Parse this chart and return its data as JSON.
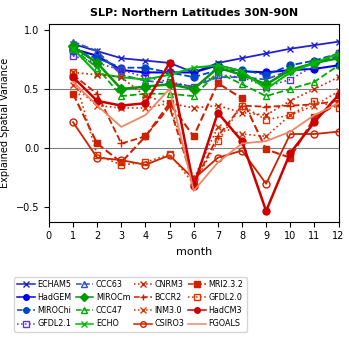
{
  "title": "SLP: Northern Latitudes 30N-90N",
  "xlabel": "month",
  "ylabel": "Explained Spatial Variance",
  "xlim": [
    0,
    12
  ],
  "ylim": [
    -0.62,
    1.05
  ],
  "yticks": [
    -0.5,
    0,
    0.5,
    1
  ],
  "xticks": [
    0,
    1,
    2,
    3,
    4,
    5,
    6,
    7,
    8,
    9,
    10,
    11,
    12
  ],
  "hlines": [
    0,
    0.5
  ],
  "series": [
    {
      "name": "ECHAM5",
      "color": "#2222cc",
      "linestyle": "-",
      "marker": "x",
      "markersize": 5,
      "linewidth": 1.3,
      "markerfacecolor": "#2222cc",
      "data": [
        null,
        0.88,
        0.82,
        0.76,
        0.74,
        0.72,
        0.64,
        0.72,
        0.76,
        0.8,
        0.84,
        0.87,
        0.9
      ]
    },
    {
      "name": "HadGEM",
      "color": "#0000ee",
      "linestyle": "-",
      "marker": "o",
      "markersize": 5,
      "linewidth": 1.5,
      "markerfacecolor": "#0000ee",
      "data": [
        null,
        0.84,
        0.78,
        0.66,
        0.64,
        0.64,
        0.64,
        0.7,
        0.65,
        0.64,
        0.66,
        0.67,
        0.7
      ]
    },
    {
      "name": "MIROChi",
      "color": "#0044cc",
      "linestyle": "--",
      "marker": "o",
      "markersize": 5,
      "linewidth": 1.3,
      "markerfacecolor": "#0044cc",
      "data": [
        null,
        0.82,
        0.76,
        0.68,
        0.68,
        0.64,
        0.6,
        0.66,
        0.66,
        0.62,
        0.7,
        0.74,
        0.8
      ]
    },
    {
      "name": "GFDL2.1",
      "color": "#6633cc",
      "linestyle": ":",
      "marker": "s",
      "markersize": 5,
      "linewidth": 1.2,
      "markerfacecolor": "none",
      "data": [
        null,
        0.78,
        0.72,
        0.66,
        0.6,
        0.56,
        0.52,
        0.62,
        0.6,
        0.52,
        0.58,
        0.7,
        0.8
      ]
    },
    {
      "name": "CCC63",
      "color": "#3355bb",
      "linestyle": "--",
      "marker": "^",
      "markersize": 5,
      "linewidth": 1.3,
      "markerfacecolor": "none",
      "data": [
        null,
        0.9,
        0.82,
        0.62,
        0.57,
        0.55,
        0.52,
        0.6,
        0.6,
        0.58,
        0.66,
        0.72,
        0.78
      ]
    },
    {
      "name": "MIROCm",
      "color": "#009900",
      "linestyle": "-",
      "marker": "D",
      "markersize": 5,
      "linewidth": 1.8,
      "markerfacecolor": "#009900",
      "data": [
        null,
        0.86,
        0.72,
        0.5,
        0.52,
        0.54,
        0.5,
        0.68,
        0.62,
        0.54,
        0.66,
        0.72,
        0.76
      ]
    },
    {
      "name": "CCC47",
      "color": "#00aa00",
      "linestyle": "--",
      "marker": "^",
      "markersize": 5,
      "linewidth": 1.3,
      "markerfacecolor": "none",
      "data": [
        null,
        0.84,
        0.68,
        0.44,
        0.46,
        0.46,
        0.44,
        0.64,
        0.54,
        0.44,
        0.5,
        0.56,
        0.7
      ]
    },
    {
      "name": "ECHO",
      "color": "#00bb00",
      "linestyle": "-",
      "marker": "x",
      "markersize": 5,
      "linewidth": 1.5,
      "markerfacecolor": "#00bb00",
      "data": [
        null,
        0.84,
        0.63,
        0.6,
        0.58,
        0.62,
        0.68,
        0.7,
        0.65,
        0.5,
        0.64,
        0.72,
        0.8
      ]
    },
    {
      "name": "CNRM3",
      "color": "#cc2200",
      "linestyle": ":",
      "marker": "x",
      "markersize": 5,
      "linewidth": 1.2,
      "markerfacecolor": "#cc2200",
      "data": [
        null,
        0.64,
        0.62,
        0.6,
        0.44,
        0.38,
        0.34,
        0.36,
        0.3,
        0.28,
        0.4,
        0.5,
        0.6
      ]
    },
    {
      "name": "BCCR2",
      "color": "#cc2200",
      "linestyle": "--",
      "marker": "+",
      "markersize": 6,
      "linewidth": 1.3,
      "markerfacecolor": "#cc2200",
      "data": [
        null,
        0.62,
        0.46,
        0.04,
        0.1,
        0.35,
        -0.3,
        0.1,
        0.36,
        0.35,
        0.36,
        0.37,
        0.4
      ]
    },
    {
      "name": "INM3.0",
      "color": "#dd3300",
      "linestyle": ":",
      "marker": "x",
      "markersize": 5,
      "linewidth": 1.2,
      "markerfacecolor": "#dd3300",
      "data": [
        null,
        0.53,
        0.36,
        0.34,
        0.34,
        0.38,
        -0.26,
        0.18,
        0.12,
        0.1,
        0.28,
        0.36,
        0.48
      ]
    },
    {
      "name": "CSIRO3",
      "color": "#cc2200",
      "linestyle": "-",
      "marker": "o",
      "markersize": 5,
      "linewidth": 1.3,
      "markerfacecolor": "none",
      "data": [
        null,
        0.22,
        -0.08,
        -0.1,
        -0.14,
        -0.06,
        -0.26,
        -0.08,
        -0.02,
        -0.3,
        0.12,
        0.12,
        0.14
      ]
    },
    {
      "name": "MRI2.3.2",
      "color": "#cc2200",
      "linestyle": "--",
      "marker": "s",
      "markersize": 5,
      "linewidth": 1.5,
      "markerfacecolor": "#cc2200",
      "data": [
        null,
        0.46,
        0.04,
        -0.12,
        0.1,
        0.38,
        0.1,
        0.55,
        0.42,
        -0.01,
        -0.08,
        0.26,
        0.38
      ]
    },
    {
      "name": "GFDL2.0",
      "color": "#dd3300",
      "linestyle": ":",
      "marker": "s",
      "markersize": 5,
      "linewidth": 1.2,
      "markerfacecolor": "none",
      "data": [
        null,
        0.64,
        -0.06,
        -0.14,
        -0.12,
        -0.05,
        -0.3,
        0.06,
        0.36,
        0.24,
        0.28,
        0.4,
        0.34
      ]
    },
    {
      "name": "HadCM3",
      "color": "#cc0000",
      "linestyle": "-",
      "marker": "o",
      "markersize": 5,
      "linewidth": 1.8,
      "markerfacecolor": "#cc0000",
      "data": [
        null,
        0.6,
        0.4,
        0.36,
        0.38,
        0.72,
        -0.32,
        0.3,
        0.06,
        -0.53,
        -0.04,
        0.22,
        0.45
      ]
    },
    {
      "name": "FGOALS",
      "color": "#ee8866",
      "linestyle": "-",
      "marker": null,
      "markersize": 0,
      "linewidth": 1.3,
      "markerfacecolor": null,
      "data": [
        null,
        0.56,
        0.36,
        0.18,
        0.28,
        0.5,
        -0.36,
        -0.12,
        0.04,
        0.06,
        0.14,
        0.28,
        0.38
      ]
    }
  ],
  "legend_order": [
    [
      "ECHAM5",
      "HadGEM",
      "MIROChi",
      "GFDL2.1"
    ],
    [
      "CCC63",
      "MIROCm",
      "CCC47",
      "ECHO"
    ],
    [
      "CNRM3",
      "BCCR2",
      "INM3.0",
      "CSIRO3"
    ],
    [
      "MRI2.3.2",
      "GFDL2.0",
      "HadCM3",
      "FGOALS"
    ]
  ]
}
